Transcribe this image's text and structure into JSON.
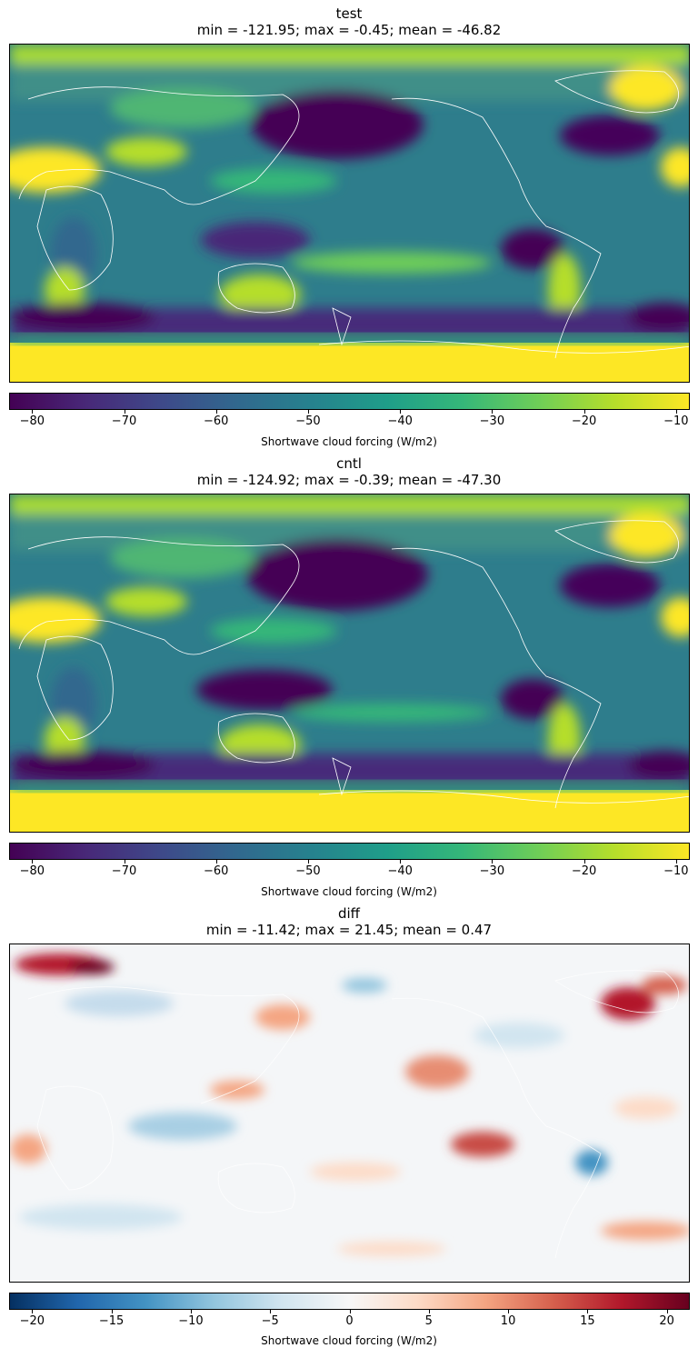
{
  "chart_data": [
    {
      "type": "heatmap",
      "title": "test",
      "subtitle": "min = -121.95; max = -0.45; mean = -46.82",
      "colormap": "viridis",
      "colorbar": {
        "label": "Shortwave cloud forcing (W/m2)",
        "range": [
          -82.5,
          -8.5
        ],
        "ticks": [
          -80,
          -70,
          -60,
          -50,
          -40,
          -30,
          -20,
          -10
        ],
        "tick_labels": [
          "−80",
          "−70",
          "−60",
          "−50",
          "−40",
          "−30",
          "−20",
          "−10"
        ]
      },
      "stats": {
        "min": -121.95,
        "max": -0.45,
        "mean": -46.82
      }
    },
    {
      "type": "heatmap",
      "title": "cntl",
      "subtitle": "min = -124.92; max = -0.39; mean = -47.30",
      "colormap": "viridis",
      "colorbar": {
        "label": "Shortwave cloud forcing (W/m2)",
        "range": [
          -82.5,
          -8.5
        ],
        "ticks": [
          -80,
          -70,
          -60,
          -50,
          -40,
          -30,
          -20,
          -10
        ],
        "tick_labels": [
          "−80",
          "−70",
          "−60",
          "−50",
          "−40",
          "−30",
          "−20",
          "−10"
        ]
      },
      "stats": {
        "min": -124.92,
        "max": -0.39,
        "mean": -47.3
      }
    },
    {
      "type": "heatmap",
      "title": "diff",
      "subtitle": "min = -11.42; max = 21.45; mean = 0.47",
      "colormap": "RdBu_r",
      "colorbar": {
        "label": "Shortwave cloud forcing (W/m2)",
        "range": [
          -21.45,
          21.45
        ],
        "ticks": [
          -20,
          -15,
          -10,
          -5,
          0,
          5,
          10,
          15,
          20
        ],
        "tick_labels": [
          "−20",
          "−15",
          "−10",
          "−5",
          "0",
          "5",
          "10",
          "15",
          "20"
        ]
      },
      "stats": {
        "min": -11.42,
        "max": 21.45,
        "mean": 0.47
      }
    }
  ],
  "colors": {
    "viridis": [
      "#440154",
      "#482878",
      "#3e4989",
      "#31688e",
      "#26828e",
      "#1f9e89",
      "#35b779",
      "#6ece58",
      "#b5de2b",
      "#fde725"
    ],
    "rdbu_r": [
      "#053061",
      "#2166ac",
      "#4393c3",
      "#92c5de",
      "#d1e5f0",
      "#f7f7f7",
      "#fddbc7",
      "#f4a582",
      "#d6604d",
      "#b2182b",
      "#67001f"
    ],
    "coastline": "#ffffff"
  }
}
